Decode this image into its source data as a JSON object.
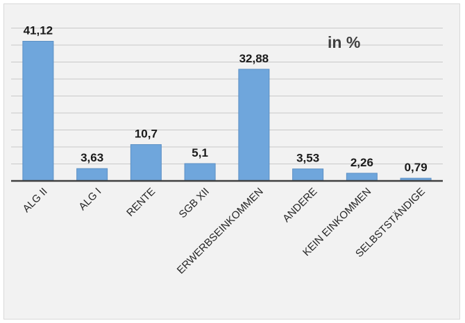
{
  "chart_data": {
    "type": "bar",
    "unit_label": "in %",
    "categories": [
      "ALG II",
      "ALG I",
      "RENTE",
      "SGB XII",
      "ERWERBSEINKOMMEN",
      "ANDERE",
      "KEIN EINKOMMEN",
      "SELBSTSTÄNDIGE"
    ],
    "values": [
      41.12,
      3.63,
      10.7,
      5.1,
      32.88,
      3.53,
      2.26,
      0.79
    ],
    "value_labels": [
      "41,12",
      "3,63",
      "10,7",
      "5,1",
      "32,88",
      "3,53",
      "2,26",
      "0,79"
    ],
    "ylim": [
      0,
      45
    ],
    "grid": true,
    "legend": "none",
    "colors": {
      "bar": "#6fa6dc",
      "bar_edge": "#5b8fc4",
      "grid": "#c8c8c8",
      "baseline": "#404040",
      "background": "#f2f2f2"
    }
  }
}
